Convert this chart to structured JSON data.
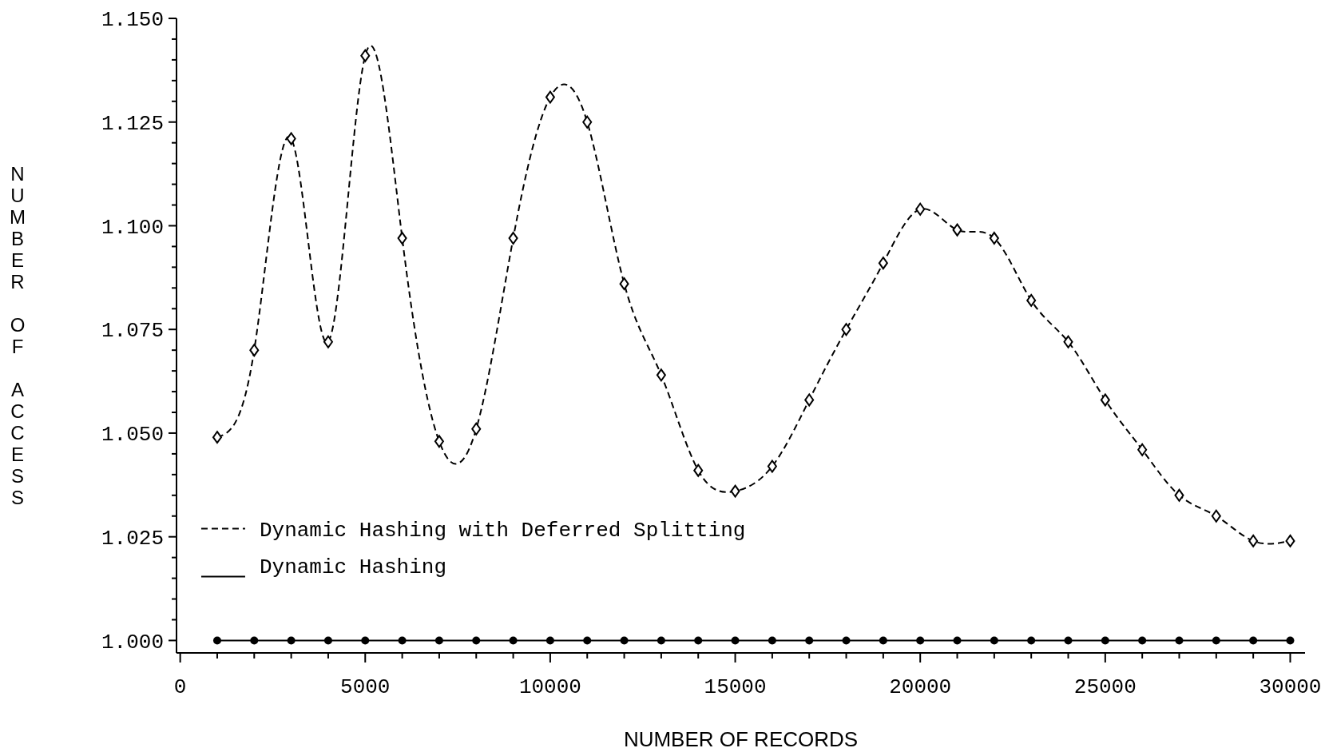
{
  "chart_data": {
    "type": "line",
    "xlabel": "NUMBER OF RECORDS",
    "ylabel": "NUMBER OF ACCESS",
    "x": [
      1000,
      2000,
      3000,
      4000,
      5000,
      6000,
      7000,
      8000,
      9000,
      10000,
      11000,
      12000,
      13000,
      14000,
      15000,
      16000,
      17000,
      18000,
      19000,
      20000,
      21000,
      22000,
      23000,
      24000,
      25000,
      26000,
      27000,
      28000,
      29000,
      30000
    ],
    "series": [
      {
        "name": "Dynamic Hashing with Deferred Splitting",
        "color": "#000000",
        "line_style": "dashed",
        "marker": "diamond",
        "values": [
          1.049,
          1.07,
          1.121,
          1.072,
          1.141,
          1.097,
          1.048,
          1.051,
          1.097,
          1.131,
          1.125,
          1.086,
          1.064,
          1.041,
          1.036,
          1.042,
          1.058,
          1.075,
          1.091,
          1.104,
          1.099,
          1.097,
          1.082,
          1.072,
          1.058,
          1.046,
          1.035,
          1.03,
          1.024,
          1.024
        ]
      },
      {
        "name": "Dynamic Hashing",
        "color": "#000000",
        "line_style": "solid",
        "marker": "circle",
        "values": [
          1,
          1,
          1,
          1,
          1,
          1,
          1,
          1,
          1,
          1,
          1,
          1,
          1,
          1,
          1,
          1,
          1,
          1,
          1,
          1,
          1,
          1,
          1,
          1,
          1,
          1,
          1,
          1,
          1,
          1
        ]
      }
    ],
    "xlim": [
      -100,
      30400
    ],
    "xticks": [
      0,
      {
        "value": 1000,
        "label": null
      },
      {
        "value": 2000,
        "label": null
      },
      {
        "value": 3000,
        "label": null
      },
      {
        "value": 4000,
        "label": null
      },
      5000,
      {
        "value": 6000,
        "label": null
      },
      {
        "value": 7000,
        "label": null
      },
      {
        "value": 8000,
        "label": null
      },
      {
        "value": 9000,
        "label": null
      },
      10000,
      {
        "value": 11000,
        "label": null
      },
      {
        "value": 12000,
        "label": null
      },
      {
        "value": 13000,
        "label": null
      },
      {
        "value": 14000,
        "label": null
      },
      15000,
      {
        "value": 16000,
        "label": null
      },
      {
        "value": 17000,
        "label": null
      },
      {
        "value": 18000,
        "label": null
      },
      {
        "value": 19000,
        "label": null
      },
      20000,
      {
        "value": 21000,
        "label": null
      },
      {
        "value": 22000,
        "label": null
      },
      {
        "value": 23000,
        "label": null
      },
      {
        "value": 24000,
        "label": null
      },
      25000,
      {
        "value": 26000,
        "label": null
      },
      {
        "value": 27000,
        "label": null
      },
      {
        "value": 28000,
        "label": null
      },
      {
        "value": 29000,
        "label": null
      },
      30000
    ],
    "ylim": [
      0.997,
      1.15
    ],
    "yticks": [
      {
        "value": 1,
        "label": "1.000"
      },
      {
        "value": 1.005,
        "label": null
      },
      {
        "value": 1.01,
        "label": null
      },
      {
        "value": 1.015,
        "label": null
      },
      {
        "value": 1.02,
        "label": null
      },
      {
        "value": 1.025,
        "label": "1.025"
      },
      {
        "value": 1.03,
        "label": null
      },
      {
        "value": 1.035,
        "label": null
      },
      {
        "value": 1.04,
        "label": null
      },
      {
        "value": 1.045,
        "label": null
      },
      {
        "value": 1.05,
        "label": "1.050"
      },
      {
        "value": 1.055,
        "label": null
      },
      {
        "value": 1.06,
        "label": null
      },
      {
        "value": 1.065,
        "label": null
      },
      {
        "value": 1.07,
        "label": null
      },
      {
        "value": 1.075,
        "label": "1.075"
      },
      {
        "value": 1.08,
        "label": null
      },
      {
        "value": 1.085,
        "label": null
      },
      {
        "value": 1.09,
        "label": null
      },
      {
        "value": 1.095,
        "label": null
      },
      {
        "value": 1.1,
        "label": "1.100"
      },
      {
        "value": 1.105,
        "label": null
      },
      {
        "value": 1.11,
        "label": null
      },
      {
        "value": 1.115,
        "label": null
      },
      {
        "value": 1.12,
        "label": null
      },
      {
        "value": 1.125,
        "label": "1.125"
      },
      {
        "value": 1.13,
        "label": null
      },
      {
        "value": 1.135,
        "label": null
      },
      {
        "value": 1.14,
        "label": null
      },
      {
        "value": 1.145,
        "label": null
      },
      {
        "value": 1.15,
        "label": "1.150"
      }
    ],
    "grid": false,
    "legend": "bottom left"
  }
}
